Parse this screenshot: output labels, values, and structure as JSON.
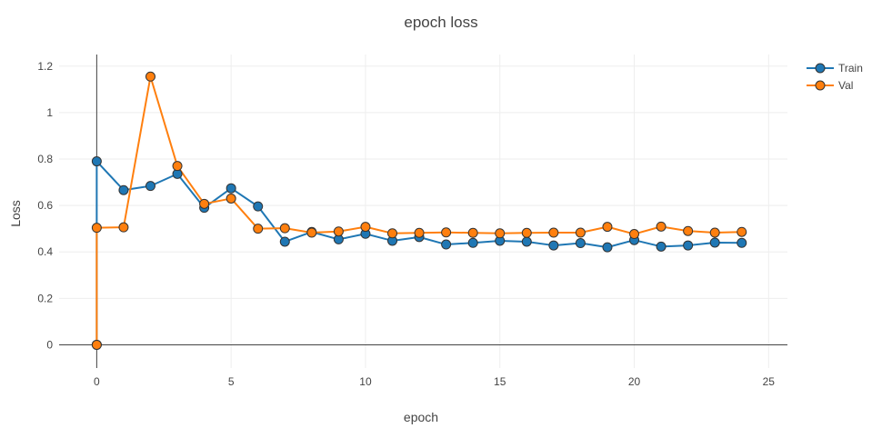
{
  "chart_data": {
    "type": "line",
    "title": "epoch loss",
    "xlabel": "epoch",
    "ylabel": "Loss",
    "xlim": [
      -1.4,
      25.7
    ],
    "ylim": [
      -0.1,
      1.25
    ],
    "xticks": [
      0,
      5,
      10,
      15,
      20,
      25
    ],
    "yticks": [
      0,
      0.2,
      0.4,
      0.6,
      0.8,
      1,
      1.2
    ],
    "grid": true,
    "legend_position": "top-right",
    "series": [
      {
        "name": "Train",
        "color": "#1f77b4",
        "points": [
          [
            0,
            0
          ],
          [
            0,
            0.79
          ],
          [
            1,
            0.666
          ],
          [
            2,
            0.684
          ],
          [
            3,
            0.736
          ],
          [
            4,
            0.59
          ],
          [
            5,
            0.674
          ],
          [
            6,
            0.596
          ],
          [
            7,
            0.444
          ],
          [
            8,
            0.486
          ],
          [
            9,
            0.454
          ],
          [
            10,
            0.478
          ],
          [
            11,
            0.448
          ],
          [
            12,
            0.464
          ],
          [
            13,
            0.432
          ],
          [
            14,
            0.439
          ],
          [
            15,
            0.448
          ],
          [
            16,
            0.444
          ],
          [
            17,
            0.428
          ],
          [
            18,
            0.438
          ],
          [
            19,
            0.42
          ],
          [
            20,
            0.451
          ],
          [
            21,
            0.423
          ],
          [
            22,
            0.428
          ],
          [
            23,
            0.44
          ],
          [
            24,
            0.439
          ]
        ]
      },
      {
        "name": "Val",
        "color": "#ff7f0e",
        "points": [
          [
            0,
            0
          ],
          [
            0,
            0.504
          ],
          [
            1,
            0.506
          ],
          [
            2,
            1.155
          ],
          [
            3,
            0.77
          ],
          [
            4,
            0.607
          ],
          [
            5,
            0.63
          ],
          [
            6,
            0.5
          ],
          [
            7,
            0.502
          ],
          [
            8,
            0.483
          ],
          [
            9,
            0.488
          ],
          [
            10,
            0.508
          ],
          [
            11,
            0.48
          ],
          [
            12,
            0.482
          ],
          [
            13,
            0.484
          ],
          [
            14,
            0.482
          ],
          [
            15,
            0.48
          ],
          [
            16,
            0.482
          ],
          [
            17,
            0.483
          ],
          [
            18,
            0.483
          ],
          [
            19,
            0.508
          ],
          [
            20,
            0.477
          ],
          [
            21,
            0.509
          ],
          [
            22,
            0.49
          ],
          [
            23,
            0.483
          ],
          [
            24,
            0.486
          ]
        ]
      }
    ]
  }
}
